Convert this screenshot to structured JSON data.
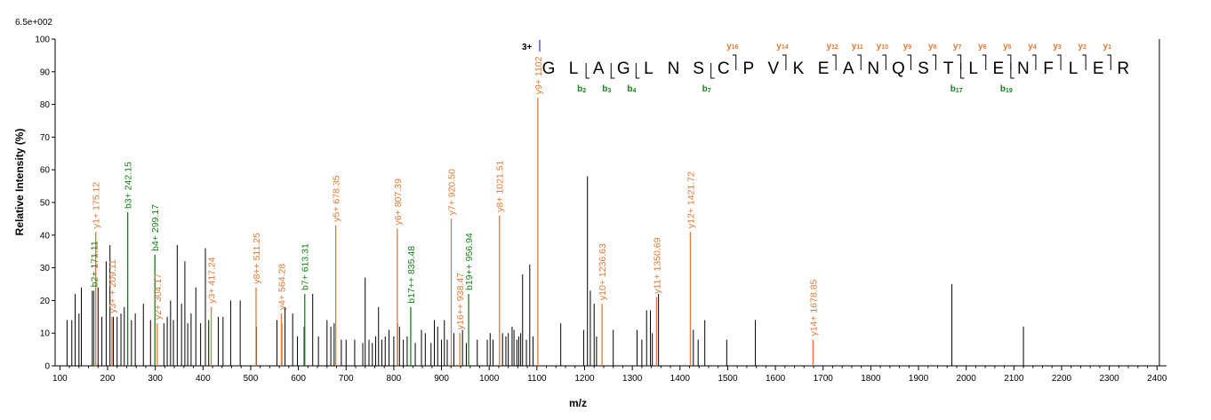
{
  "chart_data": {
    "type": "bar",
    "scale_label": "6.5e+002",
    "xlabel": "m/z",
    "ylabel": "Relative  Intensity (%)",
    "xlim": [
      90,
      2420
    ],
    "ylim": [
      0,
      100
    ],
    "x_ticks": [
      100,
      200,
      300,
      400,
      500,
      600,
      700,
      800,
      900,
      1000,
      1100,
      1200,
      1300,
      1400,
      1500,
      1600,
      1700,
      1800,
      1900,
      2000,
      2100,
      2200,
      2300,
      2400
    ],
    "y_ticks": [
      0,
      10,
      20,
      30,
      40,
      50,
      60,
      70,
      80,
      90,
      100
    ],
    "colors": {
      "y_ion": "#e07b39",
      "b_ion": "#1a7f1a",
      "unassigned": "#000000",
      "charge": "#0000cc"
    },
    "unassigned_peaks": [
      [
        115,
        14
      ],
      [
        125,
        14
      ],
      [
        132,
        22
      ],
      [
        140,
        16
      ],
      [
        145,
        24
      ],
      [
        168,
        23
      ],
      [
        180,
        24
      ],
      [
        188,
        15
      ],
      [
        197,
        32
      ],
      [
        205,
        37
      ],
      [
        212,
        15
      ],
      [
        220,
        15
      ],
      [
        228,
        16
      ],
      [
        235,
        18
      ],
      [
        250,
        14
      ],
      [
        258,
        16
      ],
      [
        275,
        19
      ],
      [
        290,
        14
      ],
      [
        318,
        13
      ],
      [
        325,
        15
      ],
      [
        332,
        20
      ],
      [
        338,
        14
      ],
      [
        346,
        37
      ],
      [
        355,
        19
      ],
      [
        362,
        32
      ],
      [
        368,
        13
      ],
      [
        375,
        16
      ],
      [
        385,
        24
      ],
      [
        395,
        13
      ],
      [
        405,
        36
      ],
      [
        412,
        14
      ],
      [
        432,
        15
      ],
      [
        442,
        15
      ],
      [
        458,
        20
      ],
      [
        478,
        20
      ],
      [
        512,
        12
      ],
      [
        555,
        14
      ],
      [
        565,
        13
      ],
      [
        572,
        18
      ],
      [
        588,
        16
      ],
      [
        598,
        9
      ],
      [
        612,
        12
      ],
      [
        630,
        22
      ],
      [
        642,
        9
      ],
      [
        660,
        14
      ],
      [
        668,
        12
      ],
      [
        675,
        13
      ],
      [
        690,
        8
      ],
      [
        700,
        8
      ],
      [
        718,
        8
      ],
      [
        735,
        7
      ],
      [
        740,
        27
      ],
      [
        748,
        8
      ],
      [
        755,
        7
      ],
      [
        762,
        9
      ],
      [
        768,
        18
      ],
      [
        775,
        8
      ],
      [
        782,
        9
      ],
      [
        790,
        11
      ],
      [
        800,
        9
      ],
      [
        808,
        13
      ],
      [
        812,
        12
      ],
      [
        820,
        8
      ],
      [
        828,
        9
      ],
      [
        845,
        7
      ],
      [
        858,
        11
      ],
      [
        866,
        10
      ],
      [
        878,
        7
      ],
      [
        885,
        14
      ],
      [
        892,
        12
      ],
      [
        900,
        8
      ],
      [
        906,
        14
      ],
      [
        912,
        8
      ],
      [
        926,
        10
      ],
      [
        944,
        11
      ],
      [
        952,
        7
      ],
      [
        975,
        8
      ],
      [
        996,
        8
      ],
      [
        1002,
        10
      ],
      [
        1008,
        8
      ],
      [
        1028,
        10
      ],
      [
        1035,
        9
      ],
      [
        1040,
        10
      ],
      [
        1048,
        12
      ],
      [
        1052,
        11
      ],
      [
        1058,
        8
      ],
      [
        1062,
        9
      ],
      [
        1066,
        10
      ],
      [
        1070,
        28
      ],
      [
        1078,
        8
      ],
      [
        1085,
        31
      ],
      [
        1092,
        9
      ],
      [
        1150,
        13
      ],
      [
        1198,
        11
      ],
      [
        1206,
        58
      ],
      [
        1212,
        23
      ],
      [
        1220,
        19
      ],
      [
        1225,
        9
      ],
      [
        1260,
        11
      ],
      [
        1310,
        11
      ],
      [
        1320,
        8
      ],
      [
        1330,
        17
      ],
      [
        1338,
        17
      ],
      [
        1342,
        10
      ],
      [
        1355,
        22
      ],
      [
        1428,
        11
      ],
      [
        1438,
        8
      ],
      [
        1452,
        14
      ],
      [
        1498,
        8
      ],
      [
        1558,
        14
      ],
      [
        1970,
        25
      ],
      [
        2120,
        12
      ],
      [
        2405,
        100
      ]
    ],
    "labeled_peaks": [
      {
        "x": 175.12,
        "y": 41,
        "ion": "y",
        "label": "y1+ 175.12"
      },
      {
        "x": 171.11,
        "y": 23,
        "ion": "b",
        "label": "b2+ 171.11"
      },
      {
        "x": 209.11,
        "y": 15,
        "ion": "y",
        "label": "y3+ + 209.11"
      },
      {
        "x": 242.15,
        "y": 47,
        "ion": "b",
        "label": "b3+ 242.15"
      },
      {
        "x": 299.17,
        "y": 34,
        "ion": "b",
        "label": "b4+ 299.17"
      },
      {
        "x": 304.17,
        "y": 13,
        "ion": "y",
        "label": "y2+ 304.17"
      },
      {
        "x": 417.24,
        "y": 18,
        "ion": "y",
        "label": "y3+ 417.24"
      },
      {
        "x": 511.25,
        "y": 24,
        "ion": "y",
        "label": "y8++ 511.25"
      },
      {
        "x": 564.28,
        "y": 16,
        "ion": "y",
        "label": "y4+ 564.28"
      },
      {
        "x": 613.31,
        "y": 22,
        "ion": "b",
        "label": "b7+ 613.31"
      },
      {
        "x": 678.35,
        "y": 43,
        "ion": "y",
        "label": "y5+ 678.35"
      },
      {
        "x": 807.39,
        "y": 42,
        "ion": "y",
        "label": "y6+ 807.39"
      },
      {
        "x": 835.48,
        "y": 18,
        "ion": "b",
        "label": "b17++ 835.48"
      },
      {
        "x": 920.5,
        "y": 45,
        "ion": "y",
        "label": "y7+ 920.50"
      },
      {
        "x": 938.47,
        "y": 10,
        "ion": "y",
        "label": "y16++ 938.47"
      },
      {
        "x": 956.94,
        "y": 22,
        "ion": "b",
        "label": "b19++ 956.94"
      },
      {
        "x": 1021.51,
        "y": 46,
        "ion": "y",
        "label": "y8+ 1021.51"
      },
      {
        "x": 1102,
        "y": 82,
        "ion": "y",
        "label": "y9+ 1102"
      },
      {
        "x": 1236.63,
        "y": 19,
        "ion": "y",
        "label": "y10+ 1236.63"
      },
      {
        "x": 1350.69,
        "y": 21,
        "ion": "y",
        "label": "y11+ 1350.69"
      },
      {
        "x": 1421.72,
        "y": 41,
        "ion": "y",
        "label": "y12+ 1421.72"
      },
      {
        "x": 1678.85,
        "y": 8,
        "ion": "y",
        "label": "y14+ 1678.85"
      }
    ],
    "sequence": {
      "charge": "3+",
      "residues": [
        "G",
        "L",
        "A",
        "G",
        "L",
        "N",
        "S",
        "C",
        "P",
        "V",
        "K",
        "E",
        "A",
        "N",
        "Q",
        "S",
        "T",
        "L",
        "E",
        "N",
        "F",
        "L",
        "E",
        "R"
      ],
      "y_ions": [
        {
          "after": 7,
          "label": "y",
          "num": "16"
        },
        {
          "after": 9,
          "label": "y",
          "num": "14"
        },
        {
          "after": 11,
          "label": "y",
          "num": "12"
        },
        {
          "after": 12,
          "label": "y",
          "num": "11"
        },
        {
          "after": 13,
          "label": "y",
          "num": "10"
        },
        {
          "after": 14,
          "label": "y",
          "num": "9"
        },
        {
          "after": 15,
          "label": "y",
          "num": "8"
        },
        {
          "after": 16,
          "label": "y",
          "num": "7"
        },
        {
          "after": 17,
          "label": "y",
          "num": "6"
        },
        {
          "after": 18,
          "label": "y",
          "num": "5"
        },
        {
          "after": 19,
          "label": "y",
          "num": "4"
        },
        {
          "after": 20,
          "label": "y",
          "num": "3"
        },
        {
          "after": 21,
          "label": "y",
          "num": "2"
        },
        {
          "after": 22,
          "label": "y",
          "num": "1"
        }
      ],
      "b_ions": [
        {
          "after": 1,
          "label": "b",
          "num": "2"
        },
        {
          "after": 2,
          "label": "b",
          "num": "3"
        },
        {
          "after": 3,
          "label": "b",
          "num": "4"
        },
        {
          "after": 6,
          "label": "b",
          "num": "7"
        },
        {
          "after": 16,
          "label": "b",
          "num": "17"
        },
        {
          "after": 18,
          "label": "b",
          "num": "19"
        }
      ]
    }
  }
}
